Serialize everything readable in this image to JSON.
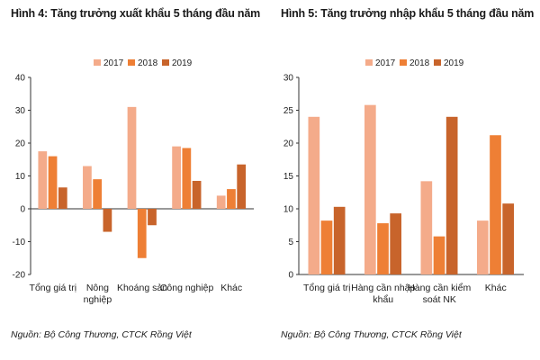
{
  "figures": [
    {
      "title": "Hình 4: Tăng trưởng xuất khẩu 5 tháng đầu năm",
      "source": "Nguồn: Bộ Công Thương, CTCK Rồng Việt"
    },
    {
      "title": "Hình 5: Tăng trưởng nhập khẩu 5 tháng đầu năm",
      "source": "Nguồn: Bộ Công Thương, CTCK Rồng Việt"
    }
  ],
  "colors": {
    "2017": "#f4ab8a",
    "2018": "#ee7f35",
    "2019": "#c8642b"
  },
  "chart_data": [
    {
      "type": "bar",
      "title": "Hình 4: Tăng trưởng xuất khẩu 5 tháng đầu năm",
      "categories": [
        [
          "Tổng giá trị"
        ],
        [
          "Nông",
          "nghiệp"
        ],
        [
          "Khoáng sản"
        ],
        [
          "Công nghiệp"
        ],
        [
          "Khác"
        ]
      ],
      "series": [
        {
          "name": "2017",
          "values": [
            17.5,
            13,
            31,
            19,
            4
          ]
        },
        {
          "name": "2018",
          "values": [
            16,
            9,
            -15,
            18.5,
            6
          ]
        },
        {
          "name": "2019",
          "values": [
            6.5,
            -7,
            -5,
            8.5,
            13.5
          ]
        }
      ],
      "ylim": [
        -20,
        40
      ],
      "yticks": [
        -20,
        -10,
        0,
        10,
        20,
        30,
        40
      ],
      "legend": "top-center",
      "grid": false
    },
    {
      "type": "bar",
      "title": "Hình 5: Tăng trưởng nhập khẩu 5 tháng đầu năm",
      "categories": [
        [
          "Tổng giá trị"
        ],
        [
          "Hàng cần nhập",
          "khẩu"
        ],
        [
          "Hàng cần kiểm",
          "soát NK"
        ],
        [
          "Khác"
        ]
      ],
      "series": [
        {
          "name": "2017",
          "values": [
            24,
            25.8,
            14.2,
            8.2
          ]
        },
        {
          "name": "2018",
          "values": [
            8.2,
            7.8,
            5.8,
            21.2
          ]
        },
        {
          "name": "2019",
          "values": [
            10.3,
            9.3,
            24,
            10.8
          ]
        }
      ],
      "ylim": [
        0,
        30
      ],
      "yticks": [
        0,
        5,
        10,
        15,
        20,
        25,
        30
      ],
      "legend": "top-center",
      "grid": false
    }
  ]
}
